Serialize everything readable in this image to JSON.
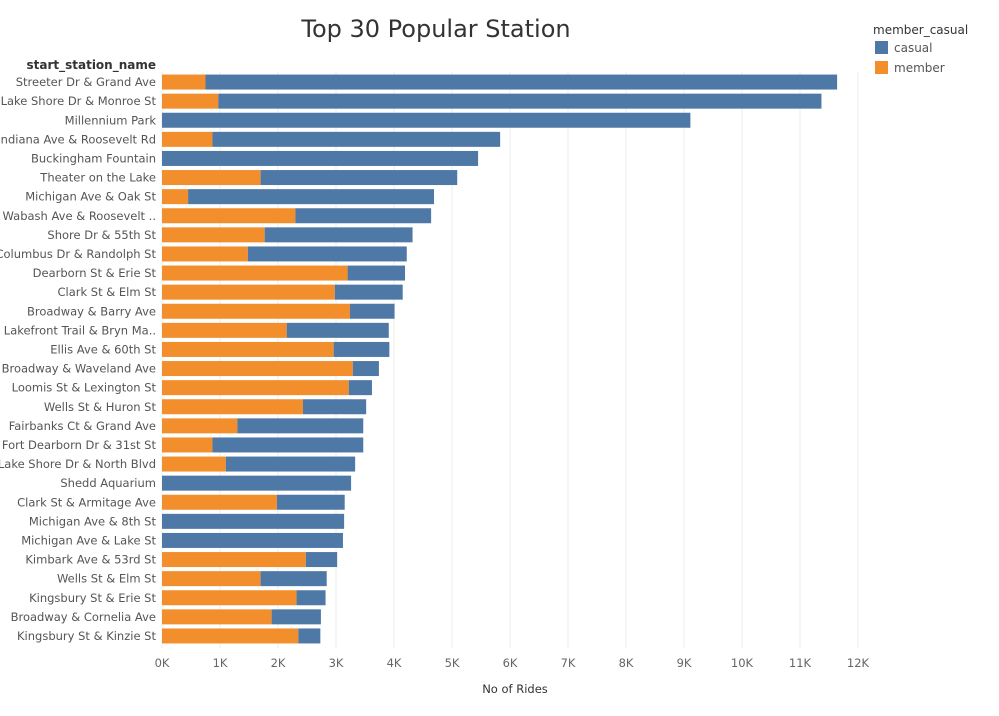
{
  "chart_data": {
    "type": "bar",
    "orientation": "horizontal",
    "stacked": true,
    "title": "Top 30 Popular Station",
    "row_header": "start_station_name",
    "xlabel": "No of Rides",
    "ylabel": "",
    "xlim": [
      0,
      12000
    ],
    "x_ticks": [
      0,
      1000,
      2000,
      3000,
      4000,
      5000,
      6000,
      7000,
      8000,
      9000,
      10000,
      11000,
      12000
    ],
    "x_tick_labels": [
      "0K",
      "1K",
      "2K",
      "3K",
      "4K",
      "5K",
      "6K",
      "7K",
      "8K",
      "9K",
      "10K",
      "11K",
      "12K"
    ],
    "grid": true,
    "legend_position": "top-right",
    "legend_title": "member_casual",
    "categories": [
      "Streeter Dr & Grand Ave",
      "Lake Shore Dr & Monroe St",
      "Millennium Park",
      "Indiana Ave & Roosevelt Rd",
      "Buckingham Fountain",
      "Theater on the Lake",
      "Michigan Ave & Oak St",
      "Wabash Ave & Roosevelt ..",
      "Shore Dr & 55th St",
      "Columbus Dr & Randolph St",
      "Dearborn St & Erie St",
      "Clark St & Elm St",
      "Broadway & Barry Ave",
      "Lakefront Trail & Bryn Ma..",
      "Ellis Ave & 60th St",
      "Broadway & Waveland Ave",
      "Loomis St & Lexington St",
      "Wells St & Huron St",
      "Fairbanks Ct & Grand Ave",
      "Fort Dearborn Dr & 31st St",
      "Lake Shore Dr & North Blvd",
      "Shedd Aquarium",
      "Clark St & Armitage Ave",
      "Michigan Ave & 8th St",
      "Michigan Ave & Lake St",
      "Kimbark Ave & 53rd St",
      "Wells St & Elm St",
      "Kingsbury St & Erie St",
      "Broadway & Cornelia Ave",
      "Kingsbury St & Kinzie St"
    ],
    "series": [
      {
        "name": "member",
        "color": "#f28e2b",
        "values": [
          750,
          970,
          0,
          870,
          0,
          1700,
          450,
          2300,
          1770,
          1480,
          3200,
          2980,
          3240,
          2150,
          2960,
          3290,
          3220,
          2430,
          1300,
          870,
          1100,
          0,
          1980,
          0,
          0,
          2480,
          1700,
          2320,
          1890,
          2350
        ]
      },
      {
        "name": "casual",
        "color": "#4e79a7",
        "values": [
          10890,
          10400,
          9110,
          4960,
          5450,
          3390,
          4240,
          2340,
          2550,
          2740,
          990,
          1170,
          770,
          1760,
          960,
          450,
          400,
          1090,
          2170,
          2600,
          2230,
          3260,
          1170,
          3140,
          3120,
          540,
          1140,
          500,
          850,
          380
        ]
      }
    ],
    "legend": [
      {
        "name": "casual",
        "color": "#4e79a7"
      },
      {
        "name": "member",
        "color": "#f28e2b"
      }
    ]
  }
}
